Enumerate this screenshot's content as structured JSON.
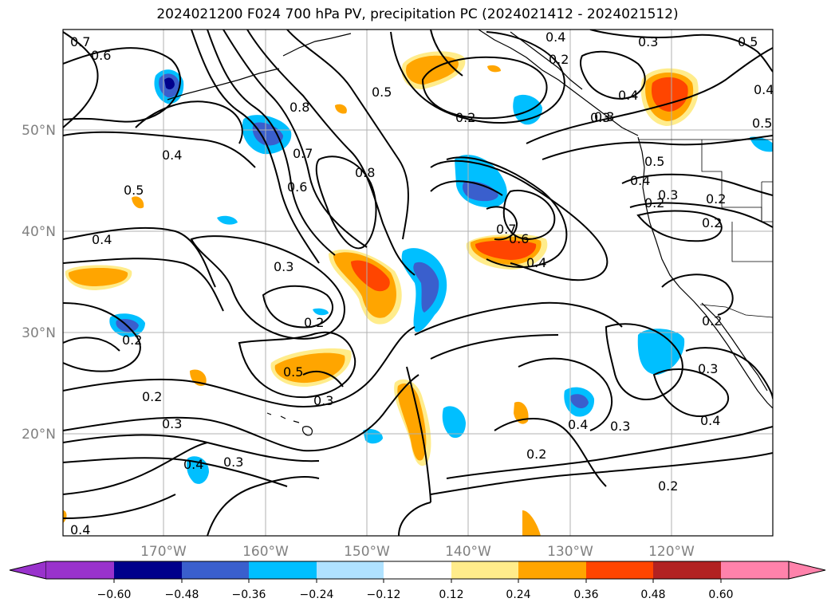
{
  "title": "2024021200 F024 700 hPa PV, precipitation PC (2024021412 - 2024021512)",
  "map": {
    "lat_labels": [
      "50°N",
      "40°N",
      "30°N",
      "20°N"
    ],
    "lon_labels": [
      "170°W",
      "160°W",
      "150°W",
      "140°W",
      "130°W",
      "120°W"
    ],
    "grid": true
  },
  "contour_labels": [
    "0.7",
    "0.6",
    "0.4",
    "0.5",
    "0.4",
    "0.3",
    "0.2",
    "0.2",
    "0.3",
    "0.3",
    "0.4",
    "0.2",
    "0.8",
    "0.7",
    "0.6",
    "0.8",
    "0.5",
    "0.3",
    "0.5",
    "0.2",
    "0.3",
    "0.4",
    "0.2",
    "0.3",
    "0.5",
    "0.4",
    "0.5",
    "0.3",
    "0.4",
    "0.3",
    "0.2",
    "0.7",
    "0.6",
    "0.4",
    "0.4",
    "0.3",
    "0.2",
    "0.2",
    "0.4",
    "0.3",
    "0.2",
    "0.4",
    "0.5",
    "0.4",
    "0.2",
    "0.2"
  ],
  "colorbar": {
    "ticks": [
      "−0.60",
      "−0.48",
      "−0.36",
      "−0.24",
      "−0.12",
      "0.12",
      "0.24",
      "0.36",
      "0.48",
      "0.60"
    ],
    "colors": [
      "#9932cc",
      "#00008b",
      "#3a5fcd",
      "#00bfff",
      "#b0e2ff",
      "#ffffff",
      "#ffec8b",
      "#ffa500",
      "#ff4500",
      "#b22222",
      "#ff82ab"
    ]
  }
}
